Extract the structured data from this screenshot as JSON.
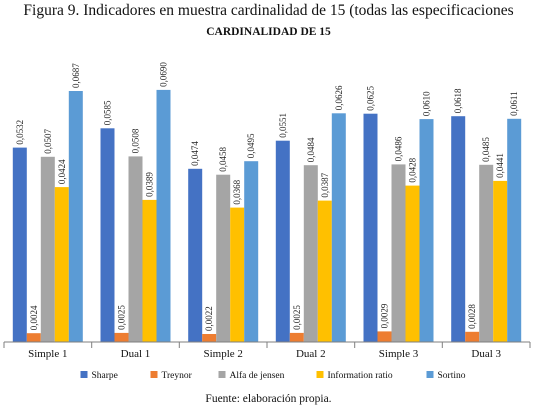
{
  "figure_caption": "Figura 9. Indicadores en muestra cardinalidad de 15 (todas las especificaciones",
  "source_note": "Fuente: elaboración propia.",
  "chart_data": {
    "type": "bar",
    "title": "CARDINALIDAD DE 15",
    "xlabel": "",
    "ylabel": "",
    "ylim": [
      0,
      0.075
    ],
    "grid": false,
    "legend_position": "bottom",
    "categories": [
      "Simple 1",
      "Dual 1",
      "Simple 2",
      "Dual 2",
      "Simple 3",
      "Dual 3"
    ],
    "series": [
      {
        "name": "Sharpe",
        "color": "#4472C4",
        "values": [
          0.0532,
          0.0585,
          0.0474,
          0.0551,
          0.0625,
          0.0618
        ],
        "labels": [
          "0,0532",
          "0,0585",
          "0,0474",
          "0,0551",
          "0,0625",
          "0,0618"
        ]
      },
      {
        "name": "Treynor",
        "color": "#ED7D31",
        "values": [
          0.0024,
          0.0025,
          0.0022,
          0.0025,
          0.0029,
          0.0028
        ],
        "labels": [
          "0,0024",
          "0,0025",
          "0,0022",
          "0,0025",
          "0,0029",
          "0,0028"
        ]
      },
      {
        "name": "Alfa de jensen",
        "color": "#A5A5A5",
        "values": [
          0.0507,
          0.0508,
          0.0458,
          0.0484,
          0.0486,
          0.0485
        ],
        "labels": [
          "0,0507",
          "0,0508",
          "0,0458",
          "0,0484",
          "0,0486",
          "0,0485"
        ]
      },
      {
        "name": "Information ratio",
        "color": "#FFC000",
        "values": [
          0.0424,
          0.0389,
          0.0368,
          0.0387,
          0.0428,
          0.0441
        ],
        "labels": [
          "0,0424",
          "0,0389",
          "0,0368",
          "0,0387",
          "0,0428",
          "0,0441"
        ]
      },
      {
        "name": "Sortino",
        "color": "#5B9BD5",
        "values": [
          0.0687,
          0.069,
          0.0495,
          0.0626,
          0.061,
          0.0611
        ],
        "labels": [
          "0,0687",
          "0,0690",
          "0,0495",
          "0,0626",
          "0,0610",
          "0,0611"
        ]
      }
    ]
  }
}
